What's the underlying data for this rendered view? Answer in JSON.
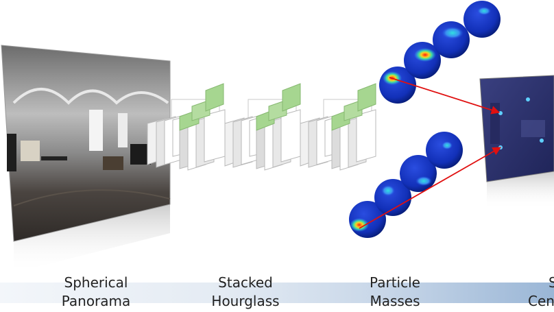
{
  "stages": [
    {
      "line1": "Spherical",
      "line2": "Panorama"
    },
    {
      "line1": "Stacked",
      "line2": "Hourglass"
    },
    {
      "line1": "Particle",
      "line2": "Masses"
    },
    {
      "line1": "S",
      "line2": "Cen"
    }
  ],
  "colors": {
    "arrow": "#e01010",
    "sphere_base": "#1530c0",
    "hot_spot": "#ff2020",
    "hourglass_green": "#9fd38a",
    "target_screen": "#2d3470"
  }
}
